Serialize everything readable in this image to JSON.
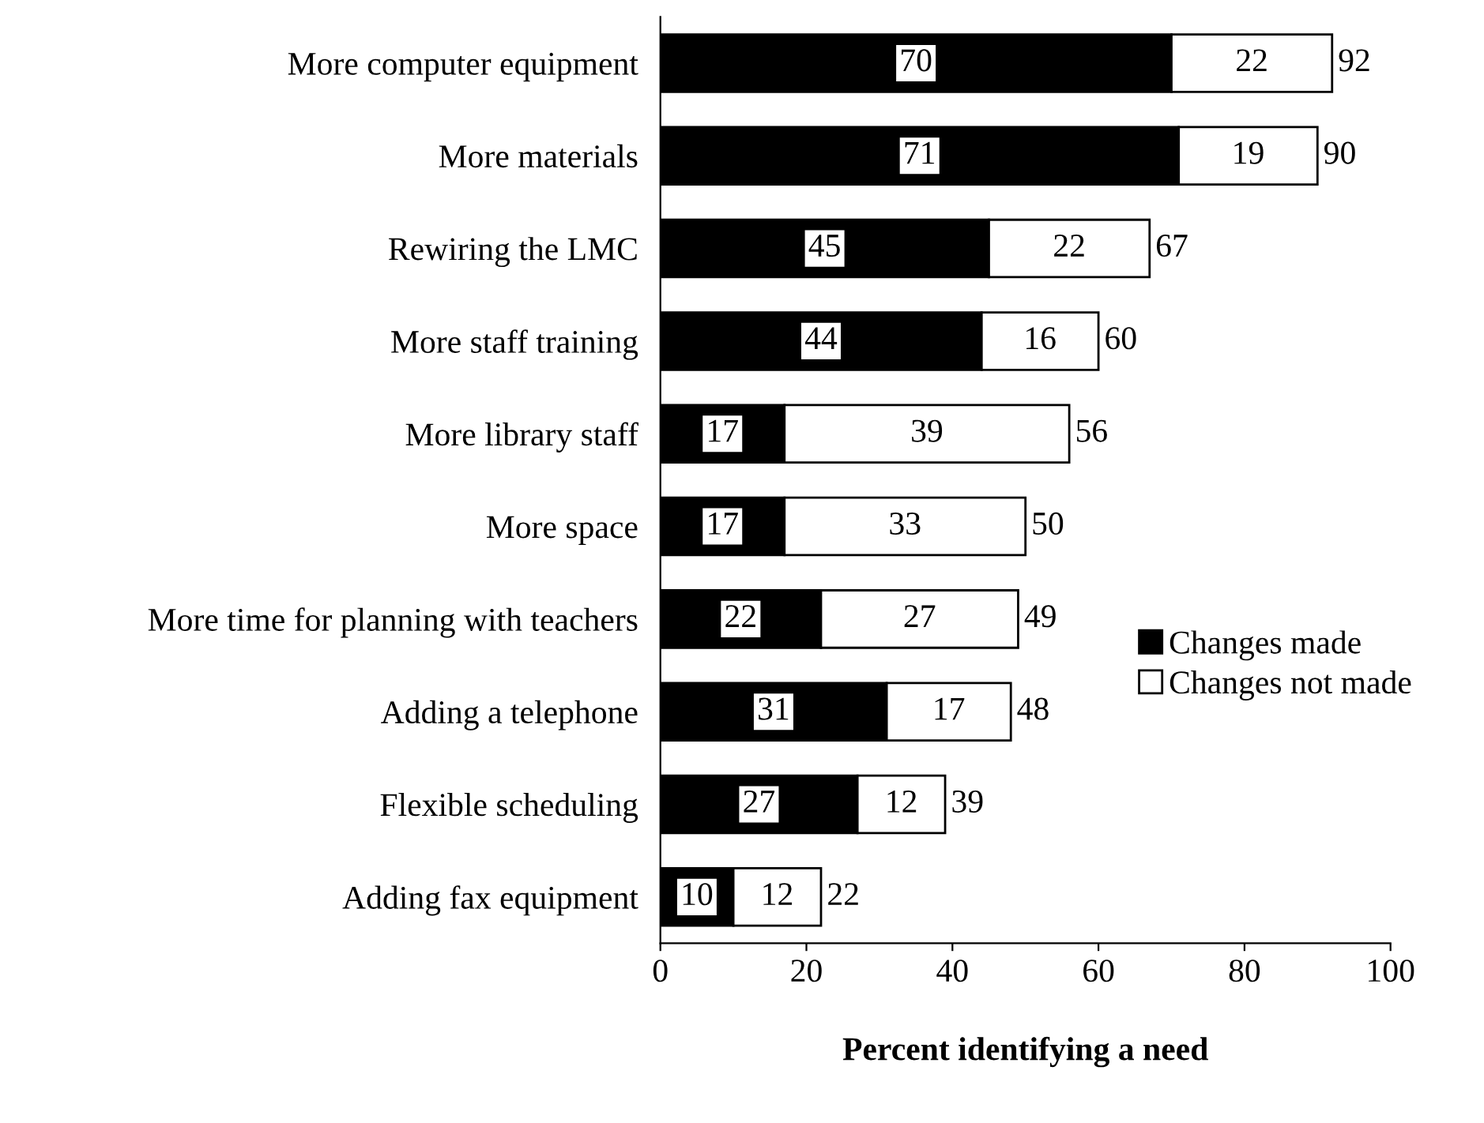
{
  "chart_data": {
    "type": "bar",
    "orientation": "horizontal",
    "stacked": true,
    "xlabel": "Percent identifying a need",
    "categories": [
      "More computer equipment",
      "More materials",
      "Rewiring the LMC",
      "More staff training",
      "More library staff",
      "More space",
      "More time for planning with teachers",
      "Adding a telephone",
      "Flexible scheduling",
      "Adding fax equipment"
    ],
    "series": [
      {
        "name": "Changes made",
        "color": "#000000",
        "values": [
          70,
          71,
          45,
          44,
          17,
          17,
          22,
          31,
          27,
          10
        ]
      },
      {
        "name": "Changes not made",
        "color": "#ffffff",
        "values": [
          22,
          19,
          22,
          16,
          39,
          33,
          27,
          17,
          12,
          12
        ]
      }
    ],
    "totals": [
      "92",
      "90",
      "67",
      "60",
      "56",
      "50",
      "49",
      "48",
      "39",
      "22"
    ],
    "data_labels": true,
    "xlim": [
      0,
      100
    ],
    "xticks": [
      0,
      20,
      40,
      60,
      80,
      100
    ],
    "grid": false,
    "legend": "right"
  }
}
